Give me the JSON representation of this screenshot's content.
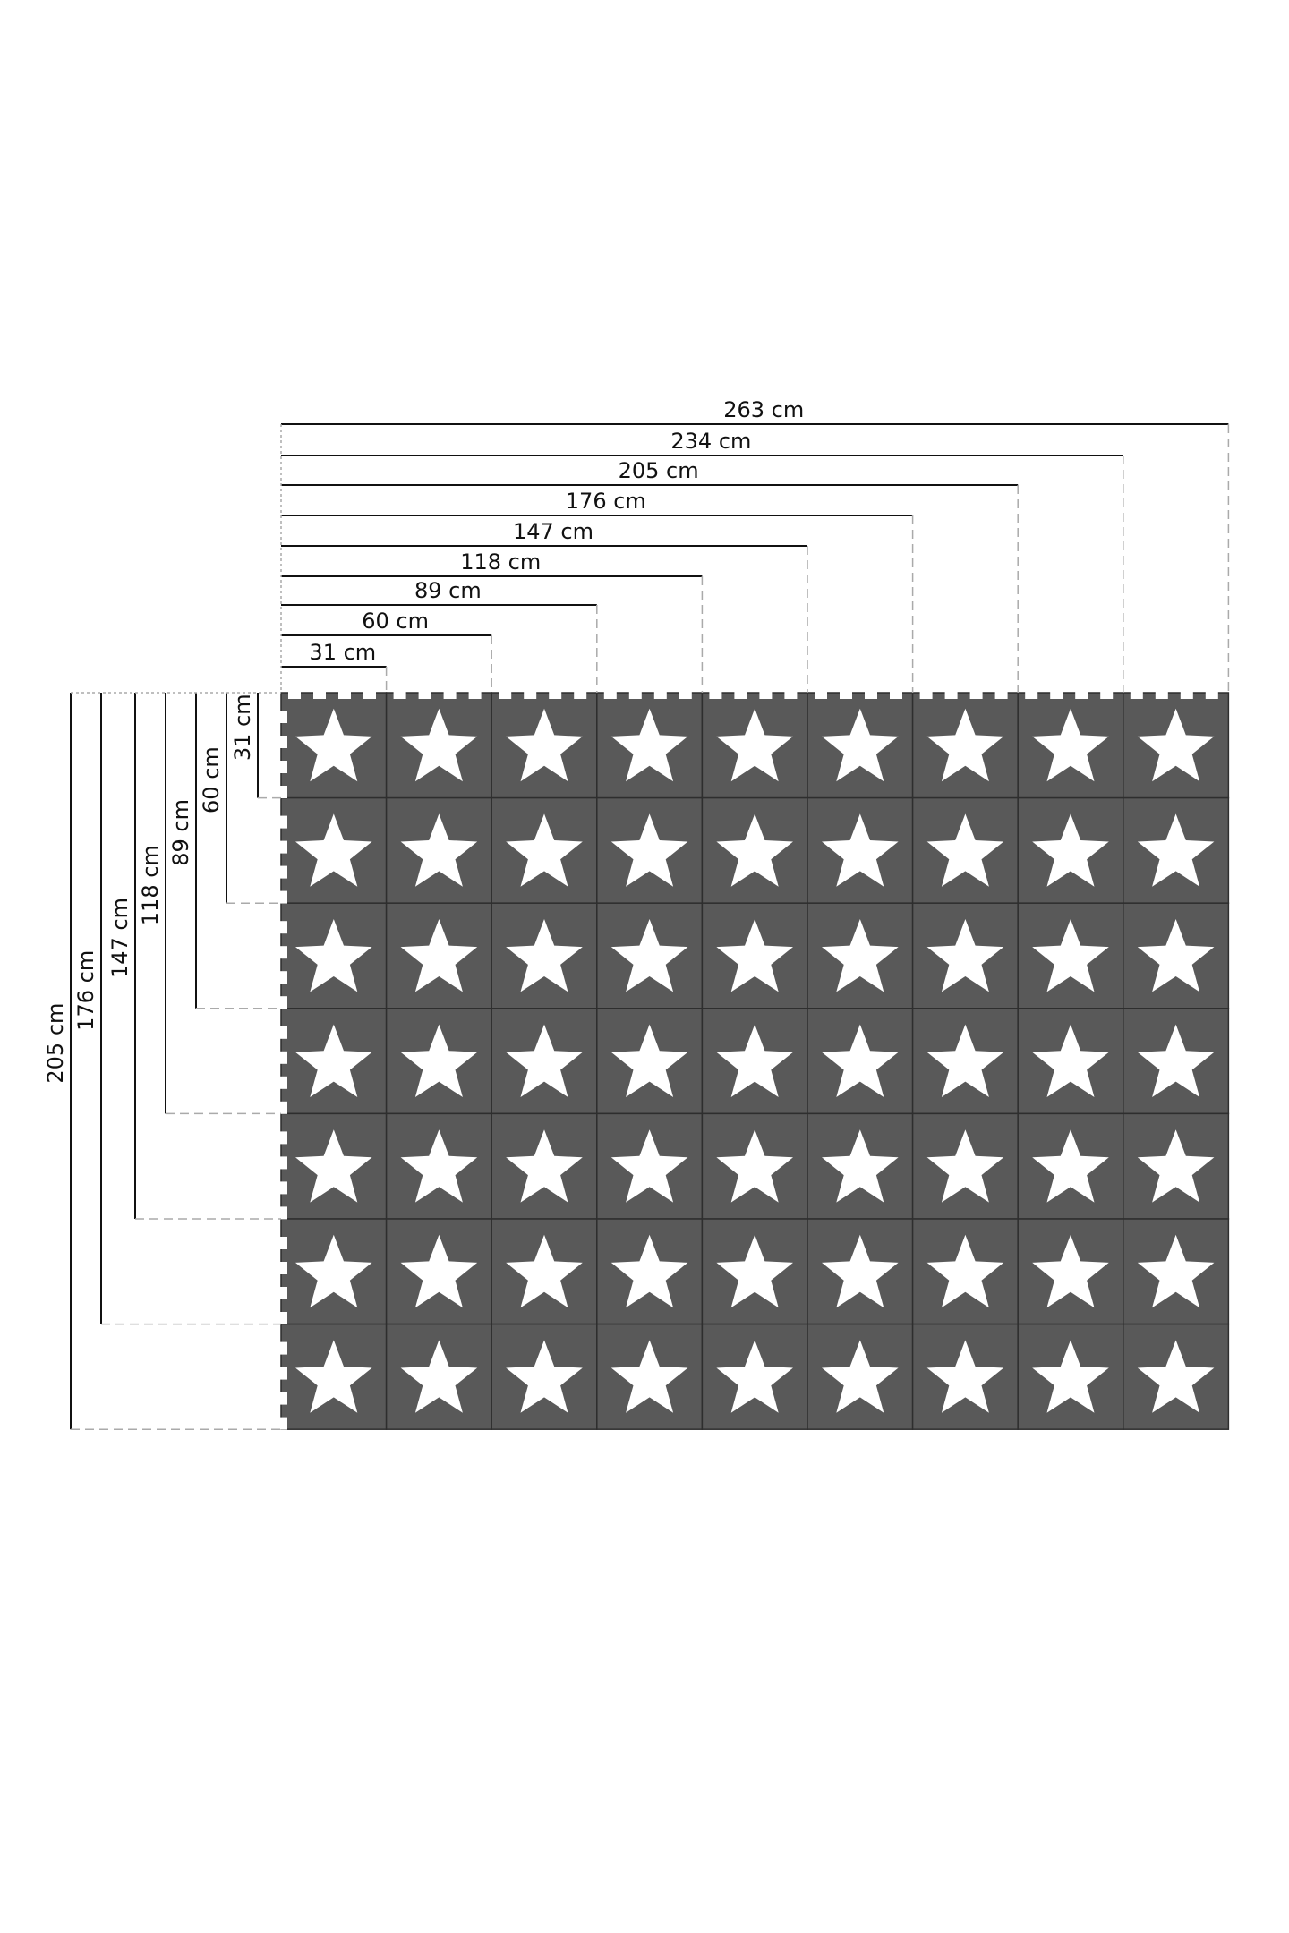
{
  "colors": {
    "tile": "#595959",
    "tile_seam": "#2e2e2e",
    "star": "#ffffff",
    "line": "#111111",
    "guide": "#aaaaaa"
  },
  "mat": {
    "columns": 9,
    "rows": 7,
    "tile_motif": "star-icon"
  },
  "width_dimensions": [
    "31 cm",
    "60 cm",
    "89 cm",
    "118 cm",
    "147 cm",
    "176 cm",
    "205 cm",
    "234 cm",
    "263 cm"
  ],
  "height_dimensions": [
    "31 cm",
    "60 cm",
    "89 cm",
    "118 cm",
    "147 cm",
    "176 cm",
    "205 cm"
  ]
}
